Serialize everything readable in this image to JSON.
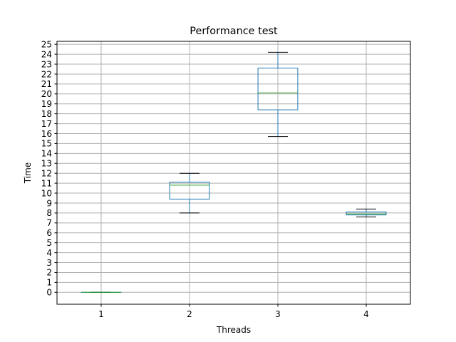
{
  "chart_data": {
    "type": "box",
    "title": "Performance test",
    "xlabel": "Threads",
    "ylabel": "Time",
    "categories": [
      "1",
      "2",
      "3",
      "4"
    ],
    "ylim": [
      -1.2,
      25.3
    ],
    "yticks": [
      0,
      1,
      2,
      3,
      4,
      5,
      6,
      7,
      8,
      9,
      10,
      11,
      12,
      13,
      14,
      15,
      16,
      17,
      18,
      19,
      20,
      21,
      22,
      23,
      24,
      25
    ],
    "grid": true,
    "boxes": [
      {
        "category": "1",
        "whisker_low": 0.0,
        "q1": 0.0,
        "median": 0.0,
        "q3": 0.0,
        "whisker_high": 0.0
      },
      {
        "category": "2",
        "whisker_low": 8.0,
        "q1": 9.4,
        "median": 10.8,
        "q3": 11.1,
        "whisker_high": 12.0
      },
      {
        "category": "3",
        "whisker_low": 15.7,
        "q1": 18.4,
        "median": 20.1,
        "q3": 22.6,
        "whisker_high": 24.2
      },
      {
        "category": "4",
        "whisker_low": 7.6,
        "q1": 7.8,
        "median": 7.9,
        "q3": 8.1,
        "whisker_high": 8.4
      }
    ],
    "colors": {
      "box": "#1f77b4",
      "median": "#2ca02c",
      "whisker_cap": "#000000",
      "grid": "#b0b0b0",
      "axes": "#000000"
    }
  }
}
